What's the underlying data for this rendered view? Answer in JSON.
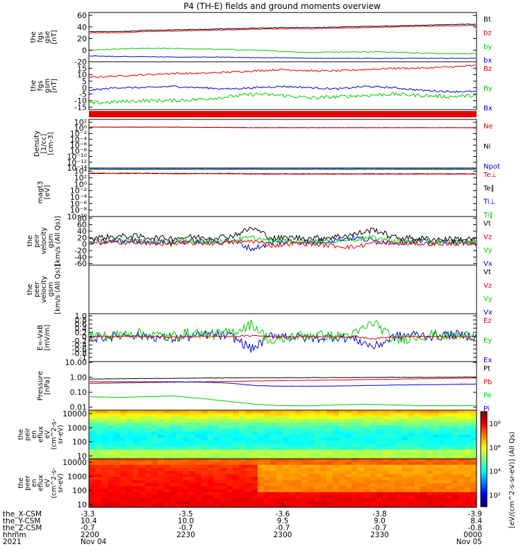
{
  "title": "P4 (TH-E) fields and ground moments overview",
  "colors": {
    "black": "#000000",
    "red": "#e00000",
    "green": "#00cc00",
    "blue": "#0000cc",
    "frame": "#000000"
  },
  "chart_data": {
    "type": "line",
    "panels": [
      {
        "ylabel": [
          "the",
          "fgs",
          "gse",
          "[nT]"
        ],
        "ticks": [
          "60",
          "40",
          "20",
          "0",
          "-20"
        ],
        "tick_values": [
          60,
          40,
          20,
          0,
          -20
        ],
        "ylim": [
          -20,
          65
        ],
        "log": false,
        "legend": [
          {
            "name": "Bt",
            "color": "#000000"
          },
          {
            "name": "bz",
            "color": "#e00000"
          },
          {
            "name": "by",
            "color": "#00cc00"
          },
          {
            "name": "bx",
            "color": "#0000cc"
          }
        ],
        "series": [
          {
            "color": "#e00000",
            "values": [
              30,
              30,
              32,
              33,
              34,
              35,
              36,
              37,
              37,
              38,
              39,
              40,
              41,
              42,
              43
            ],
            "noise": 0.6
          },
          {
            "color": "#000000",
            "values": [
              32,
              32,
              34,
              35,
              36,
              37,
              38,
              39,
              39,
              40,
              41,
              42,
              43,
              44,
              45
            ],
            "noise": 0.5
          },
          {
            "color": "#00cc00",
            "values": [
              0,
              2,
              3,
              3,
              2,
              1,
              0,
              -2,
              -4,
              -3,
              -3,
              -3,
              -5,
              -6,
              -6
            ],
            "noise": 0.9
          },
          {
            "color": "#0000cc",
            "values": [
              -10,
              -11,
              -11,
              -12,
              -12,
              -12,
              -13,
              -13,
              -14,
              -14,
              -14,
              -14,
              -14,
              -14,
              -14
            ],
            "noise": 0.5
          }
        ]
      },
      {
        "ylabel": [
          "the",
          "fgs",
          "gsm",
          "[nT]"
        ],
        "ticks": [
          "15",
          "10",
          "5",
          "0",
          "-5",
          "-10",
          "-15"
        ],
        "tick_values": [
          15,
          10,
          5,
          0,
          -5,
          -10,
          -15
        ],
        "ylim": [
          -17,
          20
        ],
        "log": false,
        "legend": [
          {
            "name": "Bz",
            "color": "#e00000"
          },
          {
            "name": "By",
            "color": "#00cc00"
          },
          {
            "name": "Bx",
            "color": "#0000cc"
          }
        ],
        "series": [
          {
            "color": "#e00000",
            "values": [
              8,
              9,
              10,
              11,
              11,
              12,
              13,
              14,
              13,
              13,
              14,
              15,
              15,
              16,
              17
            ],
            "noise": 0.7
          },
          {
            "color": "#0000cc",
            "values": [
              -2,
              0,
              0,
              1,
              0,
              -1,
              0,
              1,
              0,
              -1,
              1,
              0,
              -2,
              -3,
              -3
            ],
            "noise": 0.7
          },
          {
            "color": "#00cc00",
            "values": [
              -12,
              -11,
              -10,
              -10,
              -9,
              -7,
              -5,
              -6,
              -8,
              -7,
              -6,
              -5,
              -6,
              -7,
              -6
            ],
            "noise": 1.4
          }
        ]
      },
      {
        "ylabel": [
          "Density",
          "[1/cc]",
          "[cm-3]"
        ],
        "ticks": [
          "10²",
          "10⁰",
          "10⁻²",
          "10⁻⁴",
          "10⁻⁶",
          "10⁻⁸",
          "10⁻¹⁰",
          "10⁻¹²",
          "10⁻¹⁴"
        ],
        "tick_values": [
          2,
          0,
          -2,
          -4,
          -6,
          -8,
          -10,
          -12,
          -14
        ],
        "ylim": [
          -14,
          3
        ],
        "log": true,
        "legend": [
          {
            "name": "Ne",
            "color": "#e00000"
          },
          {
            "name": "Ni",
            "color": "#000000"
          },
          {
            "name": "Npot",
            "color": "#0000cc"
          }
        ],
        "series": [
          {
            "color": "#000000",
            "values": [
              0.3,
              0.3,
              0.3,
              0.3,
              0.2,
              0.2,
              0.1,
              0.1,
              0.1,
              0.1,
              0.1,
              0.1,
              0.1,
              0.1,
              0.1
            ],
            "noise": 0.05
          },
          {
            "color": "#e00000",
            "values": [
              0.3,
              0.3,
              0.3,
              0.3,
              0.2,
              0.2,
              0.1,
              0.1,
              0.1,
              0.1,
              0.1,
              0.1,
              0.1,
              0.1,
              0.1
            ],
            "noise": 0.05
          }
        ]
      },
      {
        "ylabel": [
          "magt3",
          "[eV]"
        ],
        "ticks": [
          "10⁴",
          "10²",
          "10⁰",
          "10⁻²",
          "10⁻⁴",
          "10⁻⁶",
          "10⁻⁸",
          "10⁻¹⁰"
        ],
        "tick_values": [
          4,
          2,
          0,
          -2,
          -4,
          -6,
          -8,
          -10
        ],
        "ylim": [
          -10,
          5
        ],
        "log": true,
        "legend": [
          {
            "name": "Te⊥",
            "color": "#e00000"
          },
          {
            "name": "Te∥",
            "color": "#000000"
          },
          {
            "name": "Ti⊥",
            "color": "#0000cc"
          },
          {
            "name": "Ti∥",
            "color": "#00cc00"
          }
        ],
        "series": [
          {
            "color": "#00cc00",
            "values": [
              4.7,
              4.7,
              4.7,
              4.7,
              4.7,
              4.7,
              4.7,
              4.7,
              4.7,
              4.7,
              4.7,
              4.7,
              4.7,
              4.7,
              4.7
            ],
            "noise": 0.04
          },
          {
            "color": "#0000cc",
            "values": [
              4.6,
              4.6,
              4.6,
              4.6,
              4.6,
              4.6,
              4.6,
              4.6,
              4.6,
              4.6,
              4.6,
              4.6,
              4.6,
              4.6,
              4.6
            ],
            "noise": 0.04
          },
          {
            "color": "#000000",
            "values": [
              3.4,
              3.4,
              3.4,
              3.3,
              3.3,
              3.3,
              3.2,
              3.2,
              3.2,
              3.2,
              3.2,
              3.2,
              3.2,
              3.2,
              3.2
            ],
            "noise": 0.05
          },
          {
            "color": "#e00000",
            "values": [
              3.3,
              3.3,
              3.3,
              3.2,
              3.2,
              3.2,
              3.1,
              3.1,
              3.1,
              3.1,
              3.1,
              3.1,
              3.1,
              3.1,
              3.1
            ],
            "noise": 0.05
          }
        ]
      },
      {
        "ylabel": [
          "the",
          "peir",
          "velocity",
          "gsm",
          "[km/s (All Qs)]"
        ],
        "ticks": [
          "80",
          "60",
          "40",
          "20",
          "0",
          "-20",
          "-40",
          "-60"
        ],
        "tick_values": [
          80,
          60,
          40,
          20,
          0,
          -20,
          -40,
          -60
        ],
        "ylim": [
          -65,
          85
        ],
        "log": false,
        "legend": [
          {
            "name": "Vt",
            "color": "#000000"
          },
          {
            "name": "Vz",
            "color": "#e00000"
          },
          {
            "name": "Vy",
            "color": "#00cc00"
          },
          {
            "name": "Vx",
            "color": "#0000cc"
          }
        ],
        "series": [
          {
            "color": "#0000cc",
            "values": [
              5,
              8,
              10,
              6,
              5,
              8,
              7,
              10,
              -15,
              5,
              8,
              5,
              12,
              20,
              10,
              5,
              8,
              5,
              6,
              5
            ],
            "noise": 9
          },
          {
            "color": "#00cc00",
            "values": [
              8,
              10,
              12,
              8,
              6,
              10,
              8,
              12,
              20,
              8,
              10,
              8,
              10,
              15,
              20,
              10,
              8,
              6,
              8,
              6
            ],
            "noise": 8
          },
          {
            "color": "#000000",
            "values": [
              18,
              22,
              25,
              20,
              18,
              22,
              20,
              25,
              50,
              18,
              20,
              18,
              22,
              30,
              45,
              20,
              18,
              15,
              16,
              15
            ],
            "noise": 9
          },
          {
            "color": "#e00000",
            "values": [
              2,
              5,
              5,
              3,
              0,
              3,
              2,
              5,
              10,
              -5,
              2,
              0,
              -5,
              -10,
              5,
              3,
              2,
              0,
              2,
              0
            ],
            "noise": 7
          }
        ]
      },
      {
        "ylabel": [
          "the",
          "peer",
          "velocity",
          "gsm",
          "[km/s (All Qs)]"
        ],
        "ticks": [],
        "tick_values": [],
        "ylim": [
          -60,
          80
        ],
        "log": false,
        "legend": [
          {
            "name": "Vt",
            "color": "#000000"
          },
          {
            "name": "Vz",
            "color": "#e00000"
          },
          {
            "name": "Vy",
            "color": "#00cc00"
          },
          {
            "name": "Vx",
            "color": "#0000cc"
          }
        ],
        "series": []
      },
      {
        "ylabel": [
          "E=-VxB",
          "[mV/m]"
        ],
        "ticks": [
          "1.0",
          "0.8",
          "0.6",
          "0.4",
          "0.2",
          "0",
          "-0.2",
          "-0.4",
          "-0.6",
          "-0.8",
          "-1"
        ],
        "tick_values": [
          1,
          0.8,
          0.6,
          0.4,
          0.2,
          0,
          -0.2,
          -0.4,
          -0.6,
          -0.8,
          -1
        ],
        "ylim": [
          -1.2,
          1.1
        ],
        "log": false,
        "legend": [
          {
            "name": "Ez",
            "color": "#e00000"
          },
          {
            "name": "Ey",
            "color": "#00cc00"
          },
          {
            "name": "Ex",
            "color": "#0000cc"
          }
        ],
        "series": [
          {
            "color": "#0000cc",
            "values": [
              -0.1,
              0,
              0.1,
              0,
              -0.1,
              0,
              0.1,
              0,
              -0.6,
              0.1,
              0,
              -0.1,
              0,
              -0.1,
              -0.5,
              0,
              0.1,
              0,
              0.1,
              0
            ],
            "noise": 0.22
          },
          {
            "color": "#00cc00",
            "values": [
              0.1,
              0,
              0.2,
              0.1,
              0,
              0.2,
              0.1,
              0.2,
              0.6,
              -0.3,
              0,
              0.1,
              0,
              0.1,
              0.7,
              -0.2,
              0,
              0.1,
              0,
              0.1
            ],
            "noise": 0.25
          },
          {
            "color": "#e00000",
            "values": [
              0,
              0,
              0.02,
              0,
              -0.02,
              0,
              0.02,
              0,
              0.05,
              0,
              0,
              0,
              0,
              0,
              -0.1,
              0,
              0,
              0,
              0,
              0
            ],
            "noise": 0.04
          }
        ]
      },
      {
        "ylabel": [
          "Pressure",
          "[nPa]"
        ],
        "ticks": [
          "10.00",
          "1.00",
          "0.10",
          "0.01"
        ],
        "tick_values": [
          1,
          0,
          -1,
          -2
        ],
        "ylim": [
          -2.2,
          1.05
        ],
        "log": true,
        "legend": [
          {
            "name": "Pt",
            "color": "#000000"
          },
          {
            "name": "Pb",
            "color": "#e00000"
          },
          {
            "name": "Pe",
            "color": "#00cc00"
          },
          {
            "name": "Pi",
            "color": "#0000cc"
          }
        ],
        "series": [
          {
            "color": "#000000",
            "values": [
              -0.12,
              -0.1,
              -0.08,
              -0.07,
              -0.05,
              -0.04,
              -0.03,
              -0.03,
              -0.02,
              -0.02,
              -0.01,
              0,
              0,
              0.01,
              0.02
            ],
            "noise": 0.01
          },
          {
            "color": "#e00000",
            "values": [
              -0.42,
              -0.38,
              -0.35,
              -0.33,
              -0.3,
              -0.28,
              -0.25,
              -0.22,
              -0.2,
              -0.18,
              -0.15,
              -0.13,
              -0.1,
              -0.08,
              -0.05
            ],
            "noise": 0.01
          },
          {
            "color": "#0000cc",
            "values": [
              -0.3,
              -0.3,
              -0.3,
              -0.3,
              -0.32,
              -0.38,
              -0.55,
              -0.6,
              -0.6,
              -0.58,
              -0.55,
              -0.52,
              -0.5,
              -0.48,
              -0.45
            ],
            "noise": 0.01
          },
          {
            "color": "#00cc00",
            "values": [
              -1.3,
              -1.35,
              -1.3,
              -1.25,
              -1.4,
              -1.6,
              -1.8,
              -1.9,
              -1.9,
              -1.85,
              -1.8,
              -1.85,
              -1.9,
              -1.9,
              -1.9
            ],
            "noise": 0.01
          }
        ]
      }
    ],
    "spectrograms": [
      {
        "ylabel": [
          "the",
          "peir",
          "en",
          "eflux",
          "eV",
          "(cm^2-s-",
          "sr-eV)"
        ],
        "ticks": [
          "10000",
          "1000",
          "100",
          "10"
        ],
        "tick_values": [
          4,
          3,
          2,
          1
        ]
      },
      {
        "ylabel": [
          "the",
          "peer",
          "en",
          "eflux",
          "eV",
          "(cm^2-s-",
          "sr-eV)"
        ],
        "ticks": [
          "10000",
          "1000",
          "100",
          "10"
        ],
        "tick_values": [
          4,
          3,
          2,
          1
        ]
      }
    ],
    "colorbar": {
      "label": "[eV/(cm^2-s-sr-eV)] (All Qs)",
      "ticks": [
        "10⁸",
        "10⁶",
        "10⁴",
        "10²"
      ],
      "tick_values": [
        8,
        6,
        4,
        2
      ]
    },
    "x_ticks": [
      {
        "x_csm": "-3.3",
        "y_csm": "10.4",
        "z_csm": "-0.7",
        "hhmm": "2200",
        "date": "Nov 04"
      },
      {
        "x_csm": "-3.5",
        "y_csm": "10.0",
        "z_csm": "-0.7",
        "hhmm": "2230",
        "date": ""
      },
      {
        "x_csm": "-3.6",
        "y_csm": "9.5",
        "z_csm": "-0.7",
        "hhmm": "2300",
        "date": ""
      },
      {
        "x_csm": "-3.8",
        "y_csm": "9.0",
        "z_csm": "-0.7",
        "hhmm": "2330",
        "date": ""
      },
      {
        "x_csm": "-3.9",
        "y_csm": "8.4",
        "z_csm": "-0.8",
        "hhmm": "0000",
        "date": "Nov 05"
      }
    ],
    "row_labels": [
      "the_X-CSM",
      "the_Y-CSM",
      "the_Z-CSM",
      "hhmm",
      "2021"
    ]
  }
}
